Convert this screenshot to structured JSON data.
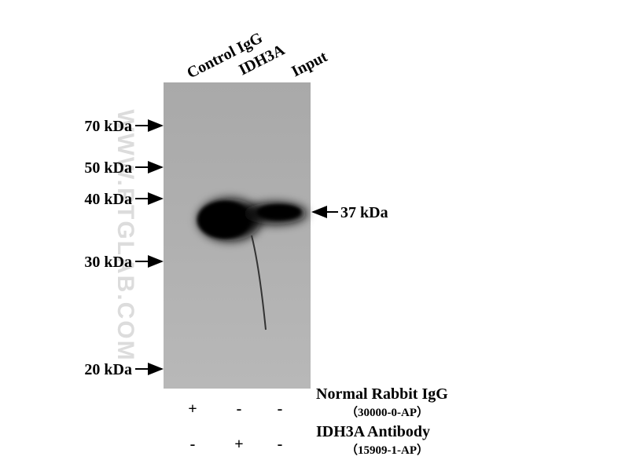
{
  "lane_labels": [
    "Control IgG",
    "IDH3A",
    "Input"
  ],
  "markers": [
    "70 kDa",
    "50 kDa",
    "40 kDa",
    "30 kDa",
    "20 kDa"
  ],
  "band_label": "37 kDa",
  "watermark": "WWW.PTGLAB.COM",
  "conditions": [
    {
      "name": "Normal Rabbit IgG",
      "catalog": "（30000-0-AP）",
      "signs": [
        "+",
        "-",
        "-"
      ]
    },
    {
      "name": "IDH3A Antibody",
      "catalog": "（15909-1-AP）",
      "signs": [
        "-",
        "+",
        "-"
      ]
    }
  ]
}
